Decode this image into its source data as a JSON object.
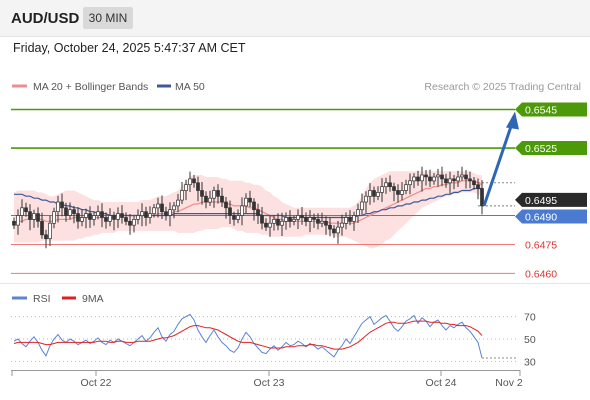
{
  "header": {
    "symbol": "AUD/USD",
    "timeframe": "30 MIN",
    "datetime": "Friday, October 24, 2025 5:47:37 AM CET"
  },
  "legend": {
    "ma20_label": "MA 20 + Bollinger Bands",
    "ma50_label": "MA 50",
    "credit": "Research © 2025 Trading Central",
    "rsi_label": "RSI",
    "rsi_ma_label": "9MA"
  },
  "colors": {
    "ma20": "#f08c8c",
    "ma50": "#3b5a9a",
    "bollinger_fill": "#fde0e0",
    "resistance": "#4c9a0a",
    "current": "#4a7bd0",
    "support": "#f07a7a",
    "up_candle": "#ffffff",
    "down_candle": "#333333",
    "arrow": "#2f66b3",
    "rsi": "#5b83d6",
    "rsi_ma": "#e02020"
  },
  "chart_data": [
    {
      "type": "candlestick",
      "x_labels": [
        "Oct 22",
        "Oct 23",
        "Oct 24",
        "Nov 2"
      ],
      "ylim": [
        0.6455,
        0.6552
      ],
      "levels": [
        {
          "value": 0.6545,
          "label": "0.6545",
          "kind": "resistance"
        },
        {
          "value": 0.6525,
          "label": "0.6525",
          "kind": "resistance"
        },
        {
          "value": 0.6495,
          "label": "0.6495",
          "kind": "last"
        },
        {
          "value": 0.649,
          "label": "0.6490",
          "kind": "current"
        },
        {
          "value": 0.6475,
          "label": "0.6475",
          "kind": "support"
        },
        {
          "value": 0.646,
          "label": "0.6460",
          "kind": "support"
        }
      ],
      "arrow": {
        "from": 0.6495,
        "to": 0.6545
      },
      "close": [
        0.6485,
        0.649,
        0.6494,
        0.6492,
        0.6488,
        0.6491,
        0.6487,
        0.648,
        0.6478,
        0.6486,
        0.6492,
        0.6497,
        0.6494,
        0.649,
        0.6493,
        0.6491,
        0.6487,
        0.6489,
        0.6491,
        0.6488,
        0.649,
        0.6492,
        0.6489,
        0.6487,
        0.649,
        0.6488,
        0.6491,
        0.6489,
        0.6487,
        0.6485,
        0.6488,
        0.649,
        0.6492,
        0.6489,
        0.6491,
        0.6494,
        0.6496,
        0.6492,
        0.649,
        0.6493,
        0.6495,
        0.6498,
        0.6503,
        0.6506,
        0.6509,
        0.6507,
        0.6503,
        0.65,
        0.6497,
        0.6499,
        0.6503,
        0.65,
        0.6497,
        0.6494,
        0.649,
        0.6488,
        0.649,
        0.6495,
        0.6499,
        0.6497,
        0.6493,
        0.649,
        0.6486,
        0.6484,
        0.6486,
        0.6488,
        0.6485,
        0.6487,
        0.6489,
        0.6487,
        0.6488,
        0.649,
        0.6489,
        0.6487,
        0.6489,
        0.6488,
        0.6486,
        0.6487,
        0.6485,
        0.6483,
        0.6481,
        0.6484,
        0.6486,
        0.6489,
        0.6487,
        0.649,
        0.6493,
        0.6497,
        0.65,
        0.6503,
        0.65,
        0.6502,
        0.6505,
        0.6507,
        0.6505,
        0.6503,
        0.6501,
        0.6503,
        0.6506,
        0.6508,
        0.651,
        0.6508,
        0.6511,
        0.651,
        0.6508,
        0.651,
        0.6511,
        0.6509,
        0.6507,
        0.6509,
        0.6508,
        0.651,
        0.6511,
        0.6509,
        0.6508,
        0.6506,
        0.6504,
        0.6495
      ],
      "ma20": [
        0.6486,
        0.6487,
        0.6487,
        0.6488,
        0.6488,
        0.6488,
        0.6488,
        0.6488,
        0.6487,
        0.6487,
        0.6487,
        0.6488,
        0.6488,
        0.6488,
        0.6488,
        0.6489,
        0.6489,
        0.6489,
        0.6489,
        0.6489,
        0.6489,
        0.6489,
        0.6489,
        0.6489,
        0.6489,
        0.6489,
        0.649,
        0.649,
        0.649,
        0.649,
        0.649,
        0.649,
        0.649,
        0.649,
        0.649,
        0.649,
        0.6491,
        0.6491,
        0.6491,
        0.6491,
        0.6492,
        0.6492,
        0.6493,
        0.6494,
        0.6495,
        0.6496,
        0.6496,
        0.6497,
        0.6497,
        0.6497,
        0.6497,
        0.6497,
        0.6497,
        0.6496,
        0.6496,
        0.6495,
        0.6495,
        0.6495,
        0.6495,
        0.6494,
        0.6494,
        0.6493,
        0.6492,
        0.6491,
        0.649,
        0.6489,
        0.6488,
        0.6488,
        0.6487,
        0.6487,
        0.6487,
        0.6487,
        0.6487,
        0.6487,
        0.6487,
        0.6487,
        0.6487,
        0.6487,
        0.6487,
        0.6486,
        0.6486,
        0.6486,
        0.6486,
        0.6486,
        0.6486,
        0.6486,
        0.6487,
        0.6488,
        0.6489,
        0.649,
        0.6491,
        0.6492,
        0.6493,
        0.6494,
        0.6495,
        0.6496,
        0.6497,
        0.6498,
        0.6499,
        0.65,
        0.6501,
        0.6502,
        0.6503,
        0.6504,
        0.6504,
        0.6505,
        0.6505,
        0.6506,
        0.6506,
        0.6507,
        0.6507,
        0.6507,
        0.6508,
        0.6508,
        0.6508,
        0.6508,
        0.6507,
        0.6506
      ],
      "bb_upper": [
        0.6502,
        0.6503,
        0.6503,
        0.6503,
        0.6503,
        0.6503,
        0.6502,
        0.6502,
        0.6501,
        0.65,
        0.65,
        0.6501,
        0.6502,
        0.6503,
        0.6503,
        0.6503,
        0.6502,
        0.6501,
        0.65,
        0.6499,
        0.6498,
        0.6498,
        0.6497,
        0.6497,
        0.6497,
        0.6497,
        0.6497,
        0.6497,
        0.6497,
        0.6497,
        0.6497,
        0.6497,
        0.6498,
        0.6498,
        0.6498,
        0.6499,
        0.65,
        0.65,
        0.65,
        0.6501,
        0.6502,
        0.6503,
        0.6505,
        0.6508,
        0.651,
        0.6511,
        0.6511,
        0.6511,
        0.651,
        0.651,
        0.651,
        0.651,
        0.6509,
        0.6509,
        0.6508,
        0.6508,
        0.6508,
        0.6508,
        0.6507,
        0.6507,
        0.6506,
        0.6506,
        0.6505,
        0.6503,
        0.6502,
        0.65,
        0.6499,
        0.6497,
        0.6496,
        0.6495,
        0.6494,
        0.6494,
        0.6494,
        0.6494,
        0.6494,
        0.6494,
        0.6494,
        0.6494,
        0.6494,
        0.6494,
        0.6494,
        0.6494,
        0.6494,
        0.6494,
        0.6494,
        0.6495,
        0.6497,
        0.65,
        0.6504,
        0.6507,
        0.6509,
        0.651,
        0.6511,
        0.6512,
        0.6513,
        0.6513,
        0.6513,
        0.6513,
        0.6513,
        0.6513,
        0.6513,
        0.6513,
        0.6513,
        0.6513,
        0.6513,
        0.6513,
        0.6513,
        0.6513,
        0.6513,
        0.6513,
        0.6513,
        0.6513,
        0.6513,
        0.6513,
        0.6513,
        0.6512,
        0.6511,
        0.6511
      ],
      "bb_lower": [
        0.6476,
        0.6476,
        0.6476,
        0.6476,
        0.6476,
        0.6476,
        0.6476,
        0.6477,
        0.6477,
        0.6477,
        0.6477,
        0.6477,
        0.6477,
        0.6477,
        0.6477,
        0.6477,
        0.6478,
        0.6478,
        0.6479,
        0.6479,
        0.648,
        0.648,
        0.6481,
        0.6481,
        0.6481,
        0.6481,
        0.6482,
        0.6482,
        0.6482,
        0.6482,
        0.6482,
        0.6482,
        0.6482,
        0.6482,
        0.6482,
        0.6482,
        0.6482,
        0.6482,
        0.6482,
        0.6482,
        0.6482,
        0.6481,
        0.6481,
        0.6481,
        0.6481,
        0.6481,
        0.6482,
        0.6482,
        0.6483,
        0.6483,
        0.6483,
        0.6483,
        0.6484,
        0.6484,
        0.6484,
        0.6483,
        0.6482,
        0.6482,
        0.6481,
        0.6481,
        0.6481,
        0.6481,
        0.648,
        0.648,
        0.6479,
        0.6479,
        0.6479,
        0.6479,
        0.6479,
        0.6479,
        0.6479,
        0.6479,
        0.6479,
        0.648,
        0.648,
        0.648,
        0.648,
        0.648,
        0.648,
        0.648,
        0.6479,
        0.6479,
        0.6479,
        0.6479,
        0.6478,
        0.6477,
        0.6476,
        0.6475,
        0.6474,
        0.6473,
        0.6473,
        0.6474,
        0.6475,
        0.6477,
        0.6478,
        0.648,
        0.6482,
        0.6484,
        0.6486,
        0.6488,
        0.649,
        0.6492,
        0.6494,
        0.6495,
        0.6496,
        0.6497,
        0.6498,
        0.6499,
        0.65,
        0.65,
        0.6501,
        0.6501,
        0.6502,
        0.6502,
        0.6502,
        0.6502,
        0.6501,
        0.65
      ],
      "ma50": [
        0.6501,
        0.6501,
        0.6501,
        0.65,
        0.65,
        0.6499,
        0.6499,
        0.6498,
        0.6498,
        0.6497,
        0.6497,
        0.6496,
        0.6496,
        0.6495,
        0.6495,
        0.6494,
        0.6494,
        0.6493,
        0.6493,
        0.6492,
        0.6492,
        0.6491,
        0.6491,
        0.6491,
        0.649,
        0.649,
        0.649,
        0.649,
        0.649,
        0.649,
        0.649,
        0.649,
        0.649,
        0.649,
        0.649,
        0.649,
        0.649,
        0.649,
        0.649,
        0.649,
        0.6491,
        0.6491,
        0.6491,
        0.6491,
        0.6491,
        0.6491,
        0.6491,
        0.6491,
        0.6491,
        0.6491,
        0.6491,
        0.6491,
        0.6491,
        0.6491,
        0.6491,
        0.6491,
        0.6491,
        0.6491,
        0.6491,
        0.6491,
        0.6491,
        0.6491,
        0.649,
        0.649,
        0.649,
        0.649,
        0.649,
        0.649,
        0.6489,
        0.6489,
        0.6489,
        0.6489,
        0.6489,
        0.6489,
        0.6489,
        0.6489,
        0.6489,
        0.6489,
        0.6489,
        0.6489,
        0.6489,
        0.6489,
        0.6489,
        0.6489,
        0.6489,
        0.6489,
        0.649,
        0.649,
        0.6491,
        0.6491,
        0.6492,
        0.6492,
        0.6493,
        0.6493,
        0.6494,
        0.6494,
        0.6495,
        0.6495,
        0.6496,
        0.6496,
        0.6497,
        0.6497,
        0.6498,
        0.6498,
        0.6499,
        0.6499,
        0.65,
        0.65,
        0.6501,
        0.6501,
        0.6502,
        0.6502,
        0.6503,
        0.6503,
        0.6503,
        0.6504,
        0.6504,
        0.6504
      ]
    },
    {
      "type": "line",
      "series_names": [
        "RSI",
        "9MA"
      ],
      "ylim": [
        25,
        75
      ],
      "y_ticks": [
        70,
        50,
        30
      ],
      "rsi": [
        48,
        50,
        46,
        43,
        48,
        52,
        47,
        40,
        35,
        44,
        50,
        54,
        49,
        47,
        50,
        48,
        45,
        47,
        49,
        46,
        48,
        51,
        47,
        45,
        49,
        47,
        50,
        48,
        46,
        44,
        47,
        50,
        53,
        48,
        51,
        56,
        60,
        52,
        48,
        54,
        57,
        63,
        68,
        70,
        72,
        67,
        58,
        52,
        47,
        53,
        58,
        52,
        47,
        44,
        40,
        38,
        42,
        50,
        56,
        52,
        46,
        42,
        38,
        37,
        41,
        44,
        40,
        43,
        47,
        44,
        45,
        48,
        46,
        43,
        46,
        44,
        41,
        43,
        40,
        37,
        34,
        40,
        44,
        50,
        46,
        52,
        58,
        64,
        67,
        70,
        63,
        66,
        69,
        71,
        66,
        60,
        57,
        61,
        66,
        68,
        71,
        64,
        69,
        66,
        61,
        65,
        67,
        62,
        58,
        62,
        60,
        63,
        65,
        60,
        57,
        52,
        47,
        33
      ],
      "rsi_ma": [
        46,
        47,
        47,
        47,
        47,
        47,
        47,
        46,
        45,
        45,
        46,
        47,
        47,
        47,
        47,
        47,
        47,
        47,
        47,
        47,
        47,
        48,
        48,
        48,
        47,
        47,
        48,
        48,
        47,
        47,
        47,
        48,
        48,
        48,
        48,
        49,
        50,
        51,
        51,
        52,
        53,
        55,
        57,
        59,
        61,
        62,
        62,
        61,
        60,
        60,
        59,
        58,
        56,
        54,
        52,
        50,
        48,
        47,
        47,
        47,
        46,
        45,
        44,
        43,
        42,
        42,
        42,
        42,
        43,
        43,
        43,
        44,
        44,
        44,
        45,
        45,
        44,
        44,
        43,
        42,
        41,
        41,
        41,
        42,
        43,
        45,
        47,
        50,
        53,
        56,
        58,
        60,
        62,
        64,
        65,
        65,
        64,
        64,
        64,
        65,
        66,
        66,
        66,
        66,
        65,
        65,
        65,
        64,
        64,
        63,
        63,
        62,
        62,
        62,
        61,
        59,
        57,
        53
      ]
    }
  ]
}
